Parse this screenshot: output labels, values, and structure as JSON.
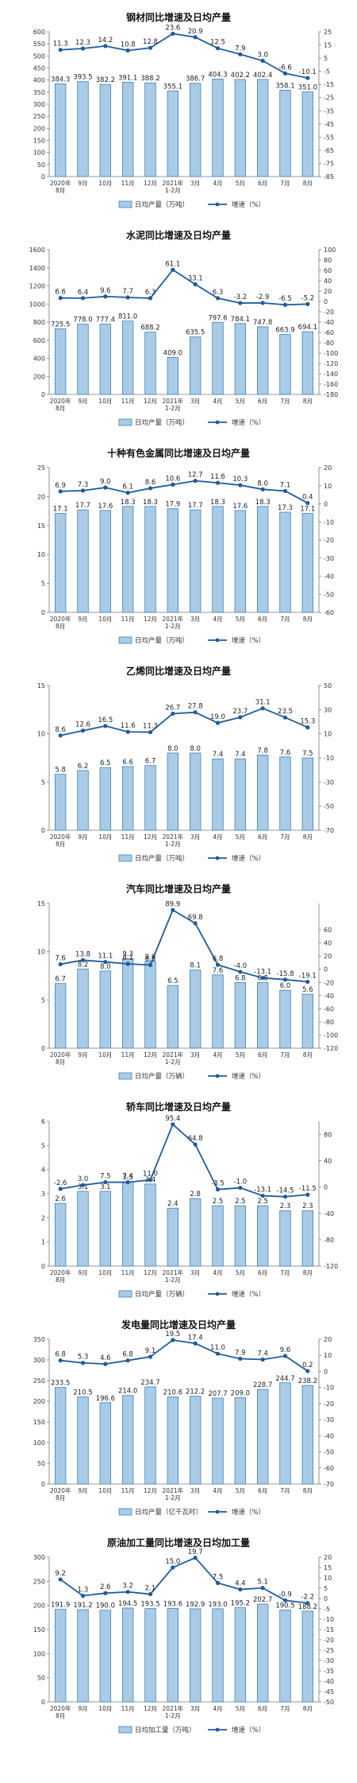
{
  "colors": {
    "bar_fill": "#a9cbe6",
    "bar_stroke": "#3d82bd",
    "line": "#1f5c99",
    "marker": "#1f5c99"
  },
  "chart_data": [
    {
      "type": "bar",
      "title": "钢材同比增速及日均产量",
      "categories": [
        "2020年 8月",
        "9月",
        "10月",
        "11月",
        "12月",
        "2021年 1-2月",
        "3月",
        "4月",
        "5月",
        "6月",
        "7月",
        "8月"
      ],
      "series": [
        {
          "name": "日均产量（万吨）",
          "axis": "left",
          "values": [
            384.3,
            393.5,
            382.2,
            391.1,
            388.2,
            355.1,
            386.7,
            404.3,
            402.2,
            402.4,
            358.1,
            351.0
          ]
        },
        {
          "name": "增速（%）",
          "axis": "right",
          "kind": "line",
          "values": [
            11.3,
            12.3,
            14.2,
            10.8,
            12.8,
            23.6,
            20.9,
            12.5,
            7.9,
            3.0,
            -6.6,
            -10.1
          ]
        }
      ],
      "left_ticks": [
        "0",
        "50",
        "100",
        "150",
        "200",
        "250",
        "300",
        "350",
        "400",
        "450",
        "500",
        "550",
        "600"
      ],
      "right_ticks": [
        "25",
        "15",
        "5",
        "-5",
        "-15",
        "-25",
        "-35",
        "-45",
        "-55",
        "-65",
        "-75",
        "-85"
      ],
      "legend": [
        "日均产量（万吨）",
        "增速（%）"
      ],
      "left_range": [
        0,
        600
      ],
      "right_range": [
        -85,
        25
      ],
      "bar_labels": [
        "384.3",
        "393.5",
        "382.2",
        "391.1",
        "388.2",
        "355.1",
        "386.7",
        "404.3",
        "402.2",
        "402.4",
        "358.1",
        "351.0"
      ],
      "line_labels": [
        "11.3",
        "12.3",
        "14.2",
        "10.8",
        "12.8",
        "23.6",
        "20.9",
        "12.5",
        "7.9",
        "3.0",
        "-6.6",
        "-10.1"
      ]
    },
    {
      "type": "bar",
      "title": "水泥同比增速及日均产量",
      "categories": [
        "2020年 8月",
        "9月",
        "10月",
        "11月",
        "12月",
        "2021年 1-2月",
        "3月",
        "4月",
        "5月",
        "6月",
        "7月",
        "8月"
      ],
      "series": [
        {
          "name": "日均产量（万吨）",
          "axis": "left",
          "values": [
            725.5,
            778.0,
            777.4,
            811.0,
            688.2,
            409.0,
            635.5,
            797.6,
            784.1,
            747.8,
            663.9,
            694.1
          ]
        },
        {
          "name": "增速（%）",
          "axis": "right",
          "kind": "line",
          "values": [
            6.6,
            6.4,
            9.6,
            7.7,
            6.3,
            61.1,
            33.1,
            6.3,
            -3.2,
            -2.9,
            -6.5,
            -5.2
          ]
        }
      ],
      "left_ticks": [
        "0",
        "200",
        "400",
        "600",
        "800",
        "1000",
        "1200",
        "1400",
        "1600"
      ],
      "right_ticks": [
        "100",
        "80",
        "60",
        "40",
        "20",
        "0",
        "-20",
        "-40",
        "-60",
        "-80",
        "-100",
        "-120",
        "-140",
        "-160",
        "-180"
      ],
      "legend": [
        "日均产量（万吨）",
        "增速（%）"
      ],
      "left_range": [
        0,
        1600
      ],
      "right_range": [
        -180,
        100
      ],
      "bar_labels": [
        "725.5",
        "778.0",
        "777.4",
        "811.0",
        "688.2",
        "409.0",
        "635.5",
        "797.6",
        "784.1",
        "747.8",
        "663.9",
        "694.1"
      ],
      "line_labels": [
        "6.6",
        "6.4",
        "9.6",
        "7.7",
        "6.3",
        "61.1",
        "33.1",
        "6.3",
        "-3.2",
        "-2.9",
        "-6.5",
        "-5.2"
      ]
    },
    {
      "type": "bar",
      "title": "十种有色金属同比增速及日均产量",
      "categories": [
        "2020年 8月",
        "9月",
        "10月",
        "11月",
        "12月",
        "2021年 1-2月",
        "3月",
        "4月",
        "5月",
        "6月",
        "7月",
        "8月"
      ],
      "series": [
        {
          "name": "日均产量（万吨）",
          "axis": "left",
          "values": [
            17.1,
            17.7,
            17.6,
            18.3,
            18.3,
            17.9,
            17.7,
            18.3,
            17.6,
            18.3,
            17.3,
            17.1
          ]
        },
        {
          "name": "增速（%）",
          "axis": "right",
          "kind": "line",
          "values": [
            6.9,
            7.3,
            9.0,
            6.1,
            8.6,
            10.6,
            12.7,
            11.6,
            10.3,
            8.0,
            7.1,
            0.4
          ]
        }
      ],
      "left_ticks": [
        "0",
        "5",
        "10",
        "15",
        "20",
        "25"
      ],
      "right_ticks": [
        "20",
        "10",
        "0",
        "-10",
        "-20",
        "-30",
        "-40",
        "-50",
        "-60"
      ],
      "legend": [
        "日均产量（万吨）",
        "增速（%）"
      ],
      "left_range": [
        0,
        25
      ],
      "right_range": [
        -60,
        20
      ],
      "bar_labels": [
        "17.1",
        "17.7",
        "17.6",
        "18.3",
        "18.3",
        "17.9",
        "17.7",
        "18.3",
        "17.6",
        "18.3",
        "17.3",
        "17.1"
      ],
      "line_labels": [
        "6.9",
        "7.3",
        "9.0",
        "6.1",
        "8.6",
        "10.6",
        "12.7",
        "11.6",
        "10.3",
        "8.0",
        "7.1",
        "0.4"
      ]
    },
    {
      "type": "bar",
      "title": "乙烯同比增速及日均产量",
      "categories": [
        "2020年 8月",
        "9月",
        "10月",
        "11月",
        "12月",
        "2021年 1-2月",
        "3月",
        "4月",
        "5月",
        "6月",
        "7月",
        "8月"
      ],
      "series": [
        {
          "name": "日均产量（万吨）",
          "axis": "left",
          "values": [
            5.8,
            6.2,
            6.5,
            6.6,
            6.7,
            8.0,
            8.0,
            7.4,
            7.4,
            7.8,
            7.6,
            7.5
          ]
        },
        {
          "name": "增速（%）",
          "axis": "right",
          "kind": "line",
          "values": [
            8.6,
            12.6,
            16.5,
            11.6,
            11.3,
            26.7,
            27.8,
            19.0,
            23.7,
            31.1,
            23.5,
            15.3
          ]
        }
      ],
      "left_ticks": [
        "0",
        "5",
        "10",
        "15"
      ],
      "right_ticks": [
        "50",
        "30",
        "10",
        "-10",
        "-30",
        "-50",
        "-70"
      ],
      "legend": [
        "日均产量（万吨）",
        "增速（%）"
      ],
      "left_range": [
        0,
        15
      ],
      "right_range": [
        -70,
        50
      ],
      "bar_labels": [
        "5.8",
        "6.2",
        "6.5",
        "6.6",
        "6.7",
        "8.0",
        "8.0",
        "7.4",
        "7.4",
        "7.8",
        "7.6",
        "7.5"
      ],
      "line_labels": [
        "8.6",
        "12.6",
        "16.5",
        "11.6",
        "11.3",
        "26.7",
        "27.8",
        "19.0",
        "23.7",
        "31.1",
        "23.5",
        "15.3"
      ]
    },
    {
      "type": "bar",
      "title": "汽车同比增速及日均产量",
      "categories": [
        "2020年 8月",
        "9月",
        "10月",
        "11月",
        "12月",
        "2021年 1-2月",
        "3月",
        "4月",
        "5月",
        "6月",
        "7月",
        "8月"
      ],
      "series": [
        {
          "name": "日均产量（万辆）",
          "axis": "left",
          "values": [
            6.7,
            8.2,
            8.0,
            9.3,
            9.0,
            6.5,
            8.1,
            7.6,
            6.8,
            6.8,
            6.0,
            5.6
          ]
        },
        {
          "name": "增速（%）",
          "axis": "right",
          "kind": "line",
          "values": [
            7.6,
            13.8,
            11.1,
            8.1,
            6.5,
            89.9,
            69.8,
            6.8,
            -4.0,
            -13.1,
            -15.8,
            -19.1
          ]
        }
      ],
      "left_ticks": [
        "0",
        "5",
        "10",
        "15"
      ],
      "right_ticks": [
        "60",
        "40",
        "20",
        "0",
        "-20",
        "-40",
        "-60",
        "-80",
        "-100",
        "-120"
      ],
      "legend": [
        "日均产量（万辆）",
        "增速（%）"
      ],
      "left_range": [
        0,
        15
      ],
      "right_range": [
        -120,
        100
      ],
      "bar_labels": [
        "6.7",
        "8.2",
        "8.0",
        "9.3",
        "9.0",
        "6.5",
        "8.1",
        "7.6",
        "6.8",
        "6.8",
        "6.0",
        "5.6"
      ],
      "line_labels": [
        "7.6",
        "13.8",
        "11.1",
        "8.1",
        "6.5",
        "89.9",
        "69.8",
        "6.8",
        "-4.0",
        "-13.1",
        "-15.8",
        "-19.1"
      ]
    },
    {
      "type": "bar",
      "title": "轿车同比增速及日均产量",
      "categories": [
        "2020年 8月",
        "9月",
        "10月",
        "11月",
        "12月",
        "2021年 1-2月",
        "3月",
        "4月",
        "5月",
        "6月",
        "7月",
        "8月"
      ],
      "series": [
        {
          "name": "日均产量（万辆）",
          "axis": "left",
          "values": [
            2.6,
            3.1,
            3.1,
            3.5,
            3.4,
            2.4,
            2.8,
            2.5,
            2.5,
            2.5,
            2.3,
            2.3
          ]
        },
        {
          "name": "增速（%）",
          "axis": "right",
          "kind": "line",
          "values": [
            -2.6,
            3.0,
            7.5,
            7.4,
            11.0,
            95.4,
            64.8,
            -3.5,
            -1.0,
            -13.1,
            -14.5,
            -11.5
          ]
        }
      ],
      "left_ticks": [
        "0",
        "1",
        "2",
        "3",
        "4",
        "5",
        "6"
      ],
      "right_ticks": [
        "80",
        "40",
        "0",
        "-40",
        "-80",
        "-120"
      ],
      "legend": [
        "日均产量（万辆）",
        "增速（%）"
      ],
      "left_range": [
        0,
        6
      ],
      "right_range": [
        -120,
        100
      ],
      "bar_labels": [
        "2.6",
        "3.1",
        "3.1",
        "3.5",
        "3.4",
        "2.4",
        "2.8",
        "2.5",
        "2.5",
        "2.5",
        "2.3",
        "2.3"
      ],
      "line_labels": [
        "-2.6",
        "3.0",
        "7.5",
        "7.4",
        "11.0",
        "95.4",
        "64.8",
        "-3.5",
        "-1.0",
        "-13.1",
        "-14.5",
        "-11.5"
      ]
    },
    {
      "type": "bar",
      "title": "发电量同比增速及日均产量",
      "categories": [
        "2020年 8月",
        "9月",
        "10月",
        "11月",
        "12月",
        "2021年 1-2月",
        "3月",
        "4月",
        "5月",
        "6月",
        "7月",
        "8月"
      ],
      "series": [
        {
          "name": "日均产量（亿千瓦时）",
          "axis": "left",
          "values": [
            233.5,
            210.5,
            196.6,
            214.0,
            234.7,
            210.6,
            212.2,
            207.7,
            209.0,
            228.7,
            244.7,
            238.2
          ]
        },
        {
          "name": "增速（%）",
          "axis": "right",
          "kind": "line",
          "values": [
            6.8,
            5.3,
            4.6,
            6.8,
            9.1,
            19.5,
            17.4,
            11.0,
            7.9,
            7.4,
            9.6,
            0.2
          ]
        }
      ],
      "left_ticks": [
        "0",
        "50",
        "100",
        "150",
        "200",
        "250",
        "300",
        "350"
      ],
      "right_ticks": [
        "20",
        "10",
        "0",
        "-10",
        "-20",
        "-30",
        "-40",
        "-50",
        "-60",
        "-70"
      ],
      "legend": [
        "日均产量（亿千瓦时）",
        "增速（%）"
      ],
      "left_range": [
        0,
        350
      ],
      "right_range": [
        -70,
        20
      ],
      "bar_labels": [
        "233.5",
        "210.5",
        "196.6",
        "214.0",
        "234.7",
        "210.6",
        "212.2",
        "207.7",
        "209.0",
        "228.7",
        "244.7",
        "238.2"
      ],
      "line_labels": [
        "6.8",
        "5.3",
        "4.6",
        "6.8",
        "9.1",
        "19.5",
        "17.4",
        "11.0",
        "7.9",
        "7.4",
        "9.6",
        "0.2"
      ]
    },
    {
      "type": "bar",
      "title": "原油加工量同比增速及日均加工量",
      "categories": [
        "2020年 8月",
        "9月",
        "10月",
        "11月",
        "12月",
        "2021年 1-2月",
        "3月",
        "4月",
        "5月",
        "6月",
        "7月",
        "8月"
      ],
      "series": [
        {
          "name": "日均加工量（万吨）",
          "axis": "left",
          "values": [
            191.9,
            191.2,
            190.0,
            194.5,
            193.5,
            193.6,
            192.9,
            193.0,
            195.2,
            202.7,
            190.5,
            188.2
          ]
        },
        {
          "name": "增速（%）",
          "axis": "right",
          "kind": "line",
          "values": [
            9.2,
            1.3,
            2.6,
            3.2,
            2.1,
            15.0,
            19.7,
            7.5,
            4.4,
            5.1,
            -0.9,
            -2.2
          ]
        }
      ],
      "left_ticks": [
        "0",
        "50",
        "100",
        "150",
        "200",
        "250",
        "300"
      ],
      "right_ticks": [
        "20",
        "15",
        "10",
        "5",
        "0",
        "-5",
        "-10",
        "-15",
        "-20",
        "-25",
        "-30",
        "-35",
        "-40",
        "-45",
        "-50"
      ],
      "legend": [
        "日均加工量（万吨）",
        "增速（%）"
      ],
      "left_range": [
        0,
        300
      ],
      "right_range": [
        -50,
        20
      ],
      "bar_labels": [
        "191.9",
        "191.2",
        "190.0",
        "194.5",
        "193.5",
        "193.6",
        "192.9",
        "193.0",
        "195.2",
        "202.7",
        "190.5",
        "188.2"
      ],
      "line_labels": [
        "9.2",
        "1.3",
        "2.6",
        "3.2",
        "2.1",
        "15.0",
        "19.7",
        "7.5",
        "4.4",
        "5.1",
        "-0.9",
        "-2.2"
      ]
    }
  ]
}
